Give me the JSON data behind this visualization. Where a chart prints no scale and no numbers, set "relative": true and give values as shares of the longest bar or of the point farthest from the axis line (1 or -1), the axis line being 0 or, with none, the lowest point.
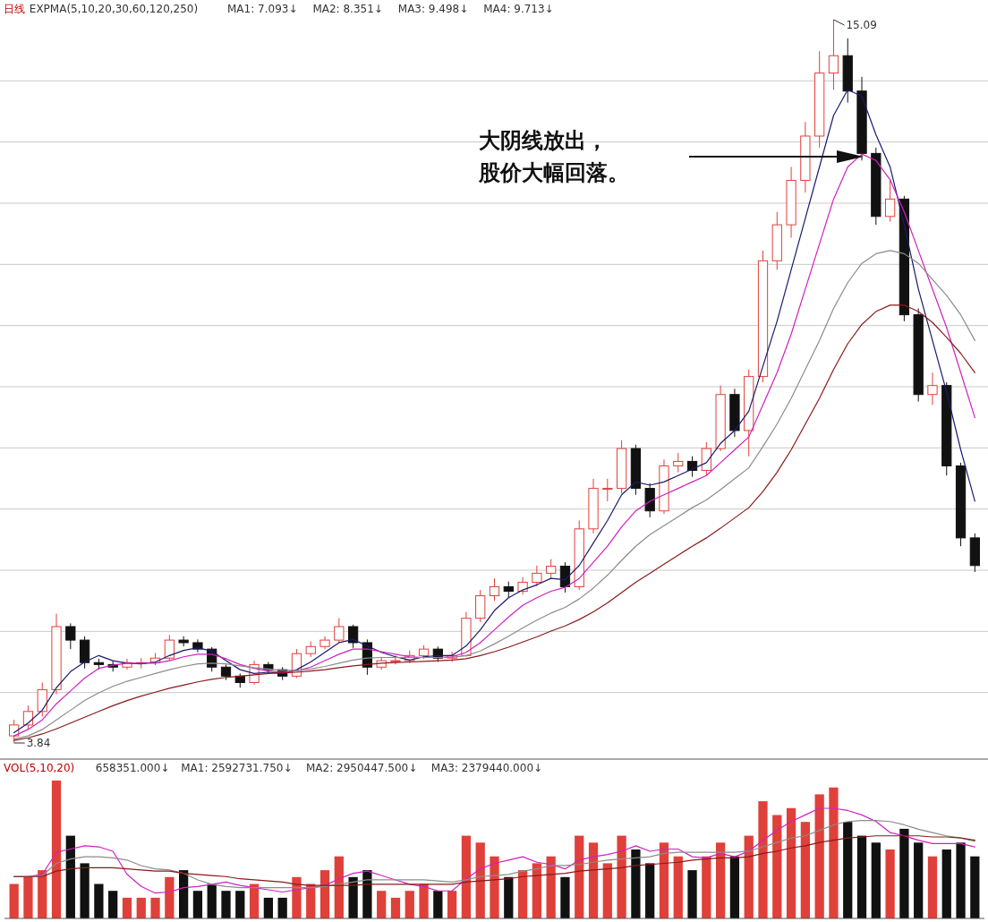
{
  "chart_data": [
    {
      "type": "candlestick",
      "title": "日线",
      "grid": true,
      "categories": [
        null,
        null,
        null,
        null,
        null,
        null,
        null,
        null,
        null,
        null,
        null,
        null,
        null,
        null,
        null,
        null,
        null,
        null,
        null,
        null,
        null,
        null,
        null,
        null,
        null,
        null,
        null,
        null,
        null,
        null,
        null,
        null,
        null,
        null,
        null,
        null,
        null,
        null,
        null,
        null,
        null,
        null,
        null,
        null,
        null,
        null,
        null,
        null,
        null,
        null,
        null,
        null,
        null,
        null,
        null,
        null,
        null,
        null,
        null,
        null,
        null,
        null,
        null,
        null,
        null,
        null,
        null,
        null,
        null
      ],
      "ohlc": [
        [
          3.95,
          4.2,
          3.84,
          4.12
        ],
        [
          4.12,
          4.42,
          4.05,
          4.33
        ],
        [
          4.33,
          4.78,
          4.25,
          4.67
        ],
        [
          4.67,
          5.85,
          4.6,
          5.65
        ],
        [
          5.65,
          5.7,
          5.3,
          5.44
        ],
        [
          5.44,
          5.5,
          5.0,
          5.09
        ],
        [
          5.09,
          5.15,
          4.98,
          5.06
        ],
        [
          5.06,
          5.12,
          4.95,
          5.02
        ],
        [
          5.02,
          5.15,
          4.98,
          5.09
        ],
        [
          5.09,
          5.16,
          5.0,
          5.09
        ],
        [
          5.09,
          5.24,
          5.05,
          5.16
        ],
        [
          5.16,
          5.52,
          5.12,
          5.44
        ],
        [
          5.44,
          5.5,
          5.34,
          5.4
        ],
        [
          5.4,
          5.45,
          5.25,
          5.3
        ],
        [
          5.3,
          5.33,
          4.95,
          5.02
        ],
        [
          5.02,
          5.06,
          4.82,
          4.88
        ],
        [
          4.88,
          4.92,
          4.7,
          4.78
        ],
        [
          4.78,
          5.12,
          4.75,
          5.06
        ],
        [
          5.06,
          5.1,
          4.92,
          4.98
        ],
        [
          4.98,
          5.02,
          4.82,
          4.88
        ],
        [
          4.88,
          5.3,
          4.85,
          5.23
        ],
        [
          5.23,
          5.42,
          5.18,
          5.34
        ],
        [
          5.34,
          5.5,
          5.3,
          5.44
        ],
        [
          5.44,
          5.78,
          5.4,
          5.65
        ],
        [
          5.65,
          5.68,
          5.32,
          5.4
        ],
        [
          5.4,
          5.45,
          4.9,
          5.02
        ],
        [
          5.02,
          5.18,
          4.98,
          5.12
        ],
        [
          5.12,
          5.2,
          5.06,
          5.12
        ],
        [
          5.12,
          5.28,
          5.08,
          5.2
        ],
        [
          5.2,
          5.36,
          5.15,
          5.3
        ],
        [
          5.3,
          5.34,
          5.1,
          5.16
        ],
        [
          5.16,
          5.26,
          5.1,
          5.2
        ],
        [
          5.2,
          5.88,
          5.18,
          5.78
        ],
        [
          5.78,
          6.22,
          5.72,
          6.13
        ],
        [
          6.13,
          6.4,
          6.05,
          6.27
        ],
        [
          6.27,
          6.35,
          6.1,
          6.2
        ],
        [
          6.2,
          6.42,
          6.15,
          6.34
        ],
        [
          6.34,
          6.6,
          6.28,
          6.48
        ],
        [
          6.48,
          6.7,
          6.4,
          6.59
        ],
        [
          6.59,
          6.65,
          6.18,
          6.27
        ],
        [
          6.27,
          7.3,
          6.22,
          7.17
        ],
        [
          7.17,
          7.95,
          7.1,
          7.8
        ],
        [
          7.8,
          7.95,
          7.6,
          7.8
        ],
        [
          7.8,
          8.55,
          7.72,
          8.42
        ],
        [
          8.42,
          8.48,
          7.7,
          7.8
        ],
        [
          7.8,
          7.88,
          7.35,
          7.45
        ],
        [
          7.45,
          8.25,
          7.4,
          8.15
        ],
        [
          8.15,
          8.35,
          8.05,
          8.22
        ],
        [
          8.22,
          8.3,
          7.98,
          8.08
        ],
        [
          8.08,
          8.52,
          8.0,
          8.42
        ],
        [
          8.42,
          9.4,
          8.38,
          9.26
        ],
        [
          9.26,
          9.35,
          8.6,
          8.7
        ],
        [
          8.7,
          9.65,
          8.3,
          9.54
        ],
        [
          9.54,
          11.5,
          9.45,
          11.34
        ],
        [
          11.34,
          12.1,
          11.2,
          11.9
        ],
        [
          11.9,
          12.8,
          11.7,
          12.59
        ],
        [
          12.59,
          13.5,
          12.4,
          13.28
        ],
        [
          13.28,
          14.6,
          13.1,
          14.26
        ],
        [
          14.26,
          15.09,
          14.0,
          14.53
        ],
        [
          14.53,
          14.8,
          13.8,
          13.98
        ],
        [
          13.98,
          14.2,
          12.9,
          13.01
        ],
        [
          13.01,
          13.1,
          11.9,
          12.03
        ],
        [
          12.03,
          12.6,
          11.95,
          12.3
        ],
        [
          12.3,
          12.35,
          10.4,
          10.5
        ],
        [
          10.5,
          10.6,
          9.15,
          9.26
        ],
        [
          9.26,
          9.6,
          9.1,
          9.4
        ],
        [
          9.4,
          9.45,
          8.0,
          8.15
        ],
        [
          8.15,
          8.2,
          6.9,
          7.03
        ],
        [
          7.03,
          7.1,
          6.5,
          6.6
        ]
      ],
      "series": [
        {
          "type": "line",
          "color": "#1a1a6e",
          "values": [
            4.0,
            4.15,
            4.35,
            4.7,
            4.95,
            5.1,
            5.2,
            5.12,
            5.08,
            5.07,
            5.1,
            5.2,
            5.28,
            5.32,
            5.27,
            5.12,
            4.98,
            4.92,
            4.94,
            4.92,
            4.98,
            5.1,
            5.25,
            5.4,
            5.45,
            5.35,
            5.25,
            5.18,
            5.13,
            5.18,
            5.2,
            5.2,
            5.35,
            5.6,
            5.9,
            6.1,
            6.22,
            6.3,
            6.4,
            6.38,
            6.6,
            6.95,
            7.3,
            7.7,
            7.9,
            7.85,
            7.9,
            8.0,
            8.1,
            8.2,
            8.5,
            8.7,
            9.0,
            9.7,
            10.4,
            11.2,
            12.0,
            12.8,
            13.6,
            14.0,
            13.9,
            13.3,
            12.8,
            11.9,
            10.9,
            10.1,
            9.3,
            8.4,
            7.6
          ]
        },
        {
          "type": "line",
          "color": "#d020c0",
          "values": [
            3.95,
            4.05,
            4.2,
            4.45,
            4.65,
            4.85,
            5.0,
            5.05,
            5.08,
            5.08,
            5.08,
            5.12,
            5.18,
            5.22,
            5.22,
            5.15,
            5.06,
            5.0,
            4.96,
            4.94,
            4.96,
            5.02,
            5.12,
            5.22,
            5.3,
            5.3,
            5.26,
            5.22,
            5.18,
            5.17,
            5.17,
            5.18,
            5.25,
            5.4,
            5.6,
            5.8,
            5.98,
            6.1,
            6.2,
            6.26,
            6.4,
            6.65,
            6.9,
            7.2,
            7.45,
            7.6,
            7.7,
            7.8,
            7.9,
            8.0,
            8.2,
            8.4,
            8.6,
            9.1,
            9.6,
            10.2,
            10.9,
            11.6,
            12.3,
            12.8,
            13.0,
            12.9,
            12.6,
            12.1,
            11.5,
            10.9,
            10.3,
            9.6,
            8.9
          ]
        },
        {
          "type": "line",
          "color": "#8c8c8c",
          "values": [
            3.9,
            3.95,
            4.05,
            4.2,
            4.35,
            4.5,
            4.62,
            4.72,
            4.8,
            4.86,
            4.92,
            4.98,
            5.03,
            5.07,
            5.08,
            5.07,
            5.04,
            5.01,
            4.99,
            4.97,
            4.97,
            4.99,
            5.03,
            5.08,
            5.13,
            5.16,
            5.17,
            5.17,
            5.17,
            5.17,
            5.17,
            5.17,
            5.2,
            5.27,
            5.38,
            5.5,
            5.63,
            5.75,
            5.86,
            5.95,
            6.08,
            6.25,
            6.45,
            6.68,
            6.9,
            7.08,
            7.22,
            7.36,
            7.5,
            7.62,
            7.78,
            7.95,
            8.12,
            8.45,
            8.8,
            9.2,
            9.65,
            10.1,
            10.6,
            11.0,
            11.3,
            11.45,
            11.5,
            11.45,
            11.3,
            11.05,
            10.8,
            10.5,
            10.1
          ]
        },
        {
          "type": "line",
          "color": "#8b1a1a",
          "values": [
            3.88,
            3.92,
            3.98,
            4.06,
            4.15,
            4.24,
            4.33,
            4.42,
            4.5,
            4.57,
            4.63,
            4.69,
            4.74,
            4.79,
            4.83,
            4.86,
            4.88,
            4.9,
            4.92,
            4.93,
            4.94,
            4.96,
            4.98,
            5.01,
            5.04,
            5.06,
            5.08,
            5.09,
            5.1,
            5.11,
            5.12,
            5.13,
            5.15,
            5.2,
            5.26,
            5.33,
            5.41,
            5.49,
            5.58,
            5.66,
            5.76,
            5.88,
            6.02,
            6.18,
            6.34,
            6.48,
            6.62,
            6.76,
            6.9,
            7.03,
            7.18,
            7.34,
            7.5,
            7.75,
            8.05,
            8.4,
            8.8,
            9.2,
            9.65,
            10.05,
            10.35,
            10.55,
            10.65,
            10.65,
            10.55,
            10.38,
            10.15,
            9.9,
            9.6
          ]
        }
      ],
      "annotations": [
        "EXPMA(5,10,20,30,60,120,250)",
        "MA1: 7.093↓",
        "MA2: 8.351↓",
        "MA3: 9.498↓",
        "MA4: 9.713↓",
        "大阴线放出，",
        "股价大幅回落。",
        "15.09",
        "3.84"
      ]
    },
    {
      "type": "bar",
      "relative": true,
      "title": "VOL(5,10,20)",
      "categories": [
        null,
        null,
        null,
        null,
        null,
        null,
        null,
        null,
        null,
        null,
        null,
        null,
        null,
        null,
        null,
        null,
        null,
        null,
        null,
        null,
        null,
        null,
        null,
        null,
        null,
        null,
        null,
        null,
        null,
        null,
        null,
        null,
        null,
        null,
        null,
        null,
        null,
        null,
        null,
        null,
        null,
        null,
        null,
        null,
        null,
        null,
        null,
        null,
        null,
        null,
        null,
        null,
        null,
        null,
        null,
        null,
        null,
        null,
        null,
        null,
        null,
        null,
        null,
        null,
        null,
        null,
        null,
        null,
        null
      ],
      "values": [
        0.25,
        0.3,
        0.35,
        1.0,
        0.6,
        0.4,
        0.25,
        0.2,
        0.15,
        0.15,
        0.15,
        0.3,
        0.35,
        0.2,
        0.25,
        0.2,
        0.2,
        0.25,
        0.15,
        0.15,
        0.3,
        0.25,
        0.35,
        0.45,
        0.3,
        0.35,
        0.2,
        0.15,
        0.2,
        0.25,
        0.2,
        0.2,
        0.6,
        0.55,
        0.45,
        0.3,
        0.35,
        0.4,
        0.45,
        0.3,
        0.6,
        0.55,
        0.4,
        0.6,
        0.5,
        0.4,
        0.55,
        0.45,
        0.35,
        0.45,
        0.55,
        0.45,
        0.6,
        0.85,
        0.75,
        0.8,
        0.7,
        0.9,
        0.95,
        0.7,
        0.6,
        0.55,
        0.5,
        0.65,
        0.55,
        0.45,
        0.5,
        0.55,
        0.45
      ],
      "colors": [
        "#e0403a",
        "#e0403a",
        "#e0403a",
        "#e0403a",
        "#111111",
        "#111111",
        "#111111",
        "#111111",
        "#e0403a",
        "#e0403a",
        "#e0403a",
        "#e0403a",
        "#111111",
        "#111111",
        "#111111",
        "#111111",
        "#111111",
        "#e0403a",
        "#111111",
        "#111111",
        "#e0403a",
        "#e0403a",
        "#e0403a",
        "#e0403a",
        "#111111",
        "#111111",
        "#e0403a",
        "#e0403a",
        "#e0403a",
        "#e0403a",
        "#111111",
        "#e0403a",
        "#e0403a",
        "#e0403a",
        "#e0403a",
        "#111111",
        "#e0403a",
        "#e0403a",
        "#e0403a",
        "#111111",
        "#e0403a",
        "#e0403a",
        "#e0403a",
        "#e0403a",
        "#111111",
        "#111111",
        "#e0403a",
        "#e0403a",
        "#111111",
        "#e0403a",
        "#e0403a",
        "#111111",
        "#e0403a",
        "#e0403a",
        "#e0403a",
        "#e0403a",
        "#e0403a",
        "#e0403a",
        "#e0403a",
        "#111111",
        "#111111",
        "#111111",
        "#e0403a",
        "#111111",
        "#111111",
        "#e0403a",
        "#111111",
        "#111111",
        "#111111"
      ],
      "annotations": [
        "658351.000↓",
        "MA1: 2592731.750↓",
        "MA2: 2950447.500↓",
        "MA3: 2379440.000↓"
      ]
    },
    {
      "type": "line",
      "relative": true,
      "categories": [
        null,
        null,
        null,
        null,
        null,
        null,
        null,
        null,
        null,
        null,
        null,
        null,
        null,
        null,
        null,
        null,
        null,
        null,
        null,
        null,
        null,
        null,
        null,
        null,
        null,
        null,
        null,
        null,
        null,
        null,
        null,
        null,
        null,
        null,
        null,
        null,
        null,
        null,
        null,
        null,
        null,
        null,
        null,
        null,
        null,
        null,
        null,
        null,
        null,
        null,
        null,
        null,
        null,
        null,
        null,
        null,
        null,
        null,
        null,
        null,
        null,
        null,
        null,
        null,
        null,
        null,
        null,
        null,
        null
      ],
      "series": [
        {
          "color": "#d020c0",
          "values": [
            0.38,
            0.38,
            0.4,
            0.6,
            0.63,
            0.66,
            0.65,
            0.61,
            0.4,
            0.29,
            0.23,
            0.24,
            0.28,
            0.29,
            0.31,
            0.33,
            0.3,
            0.28,
            0.26,
            0.24,
            0.26,
            0.28,
            0.3,
            0.36,
            0.41,
            0.43,
            0.39,
            0.35,
            0.31,
            0.29,
            0.25,
            0.25,
            0.36,
            0.45,
            0.5,
            0.53,
            0.56,
            0.51,
            0.49,
            0.45,
            0.53,
            0.56,
            0.58,
            0.61,
            0.66,
            0.61,
            0.63,
            0.63,
            0.56,
            0.55,
            0.59,
            0.56,
            0.61,
            0.71,
            0.8,
            0.88,
            0.94,
            1.0,
            1.0,
            0.98,
            0.94,
            0.88,
            0.78,
            0.75,
            0.71,
            0.68,
            0.68,
            0.68,
            0.65
          ]
        },
        {
          "color": "#8c8c8c",
          "values": [
            0.38,
            0.38,
            0.39,
            0.5,
            0.54,
            0.56,
            0.56,
            0.55,
            0.53,
            0.48,
            0.45,
            0.44,
            0.41,
            0.35,
            0.31,
            0.29,
            0.28,
            0.28,
            0.28,
            0.28,
            0.28,
            0.28,
            0.29,
            0.31,
            0.33,
            0.35,
            0.35,
            0.35,
            0.35,
            0.35,
            0.34,
            0.33,
            0.35,
            0.38,
            0.39,
            0.4,
            0.43,
            0.45,
            0.48,
            0.48,
            0.49,
            0.51,
            0.53,
            0.54,
            0.55,
            0.56,
            0.59,
            0.6,
            0.6,
            0.6,
            0.6,
            0.6,
            0.61,
            0.65,
            0.69,
            0.73,
            0.75,
            0.8,
            0.85,
            0.88,
            0.89,
            0.89,
            0.88,
            0.85,
            0.81,
            0.78,
            0.75,
            0.73,
            0.7
          ]
        },
        {
          "color": "#8b1a1a",
          "values": [
            0.38,
            0.38,
            0.38,
            0.43,
            0.45,
            0.46,
            0.46,
            0.46,
            0.45,
            0.44,
            0.43,
            0.43,
            0.41,
            0.4,
            0.39,
            0.38,
            0.36,
            0.35,
            0.34,
            0.33,
            0.31,
            0.3,
            0.3,
            0.3,
            0.3,
            0.31,
            0.31,
            0.31,
            0.31,
            0.31,
            0.31,
            0.31,
            0.33,
            0.34,
            0.35,
            0.36,
            0.38,
            0.39,
            0.4,
            0.41,
            0.43,
            0.44,
            0.45,
            0.46,
            0.48,
            0.49,
            0.5,
            0.51,
            0.53,
            0.54,
            0.55,
            0.55,
            0.56,
            0.59,
            0.61,
            0.64,
            0.66,
            0.69,
            0.71,
            0.73,
            0.74,
            0.75,
            0.75,
            0.75,
            0.75,
            0.74,
            0.74,
            0.73,
            0.71
          ]
        }
      ]
    }
  ]
}
